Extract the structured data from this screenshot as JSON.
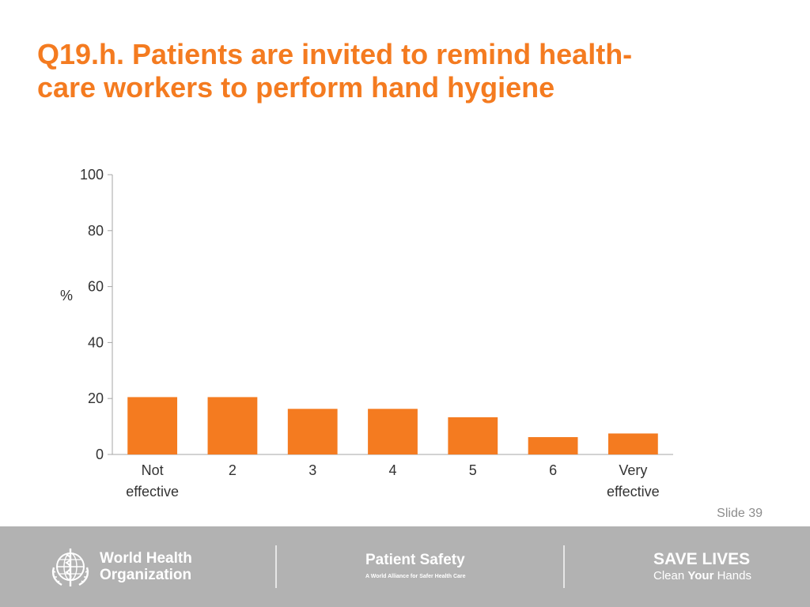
{
  "slide": {
    "title_line1": "Q19.h. Patients are invited to remind health-",
    "title_line2": "care workers to perform hand hygiene",
    "slide_number": "Slide 39",
    "accent_color": "#f47b20"
  },
  "chart_data": {
    "type": "bar",
    "categories": [
      [
        "Not",
        "effective"
      ],
      [
        "2"
      ],
      [
        "3"
      ],
      [
        "4"
      ],
      [
        "5"
      ],
      [
        "6"
      ],
      [
        "Very",
        "effective"
      ]
    ],
    "values": [
      20.5,
      20.5,
      16.3,
      16.3,
      13.3,
      6.2,
      7.5
    ],
    "xlabel": "",
    "ylabel": "%",
    "ylim": [
      0,
      100
    ],
    "yticks": [
      0,
      20,
      40,
      60,
      80,
      100
    ],
    "grid": false,
    "bar_color": "#f47b20"
  },
  "footer": {
    "org_line1": "World Health",
    "org_line2": "Organization",
    "org_logo_icon": "who-emblem-icon",
    "program_title": "Patient Safety",
    "program_subtitle": "A World Alliance for Safer Health Care",
    "campaign_title": "SAVE LIVES",
    "campaign_sub_part1": "Clean ",
    "campaign_sub_part2": "Your",
    "campaign_sub_part3": " Hands",
    "background_color": "#b2b2b2"
  }
}
